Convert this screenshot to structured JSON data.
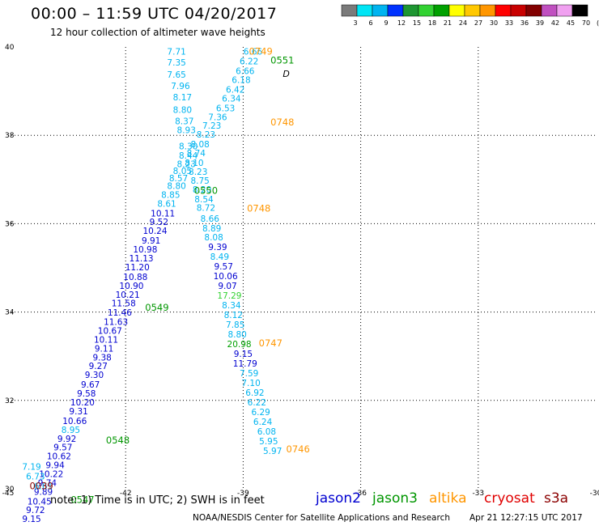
{
  "header": {
    "title": "00:00 – 11:59 UTC 04/20/2017",
    "subtitle": "12 hour collection of altimeter wave heights"
  },
  "colorbar": {
    "labels": [
      "3",
      "6",
      "9",
      "12",
      "15",
      "18",
      "21",
      "24",
      "27",
      "30",
      "33",
      "36",
      "39",
      "42",
      "45",
      "70",
      "(ft)"
    ],
    "colors": [
      "#7a7a7a",
      "#00e5f5",
      "#00b4f0",
      "#0032ff",
      "#1e9632",
      "#32d232",
      "#00a000",
      "#ffff00",
      "#ffc800",
      "#ff9600",
      "#ff0000",
      "#c80000",
      "#820000",
      "#c050c0",
      "#f0a0f0",
      "#000000"
    ]
  },
  "footer": {
    "note": "note: 1) Time is in UTC; 2) SWH is in feet",
    "credit": "NOAA/NESDIS Center for Satellite Applications and Research",
    "timestamp": "Apr 21 12:27:15 UTC 2017"
  },
  "satellites": [
    {
      "name": "jason2",
      "color": "#0000d0"
    },
    {
      "name": "jason3",
      "color": "#009600"
    },
    {
      "name": "altika",
      "color": "#ff9600"
    },
    {
      "name": "cryosat",
      "color": "#e00000"
    },
    {
      "name": "s3a",
      "color": "#8b0000"
    }
  ],
  "chart_data": {
    "type": "scatter",
    "title": "00:00 – 11:59 UTC 04/20/2017",
    "subtitle": "12 hour collection of altimeter wave heights",
    "xlim": [
      -45,
      -30
    ],
    "ylim": [
      30,
      40
    ],
    "xticks": [
      "-45",
      "-42",
      "-39",
      "-36",
      "-33",
      "-30"
    ],
    "yticks": [
      "30",
      "32",
      "34",
      "36",
      "38",
      "40"
    ],
    "grid": true,
    "unit": "ft",
    "points": [
      {
        "x": -40.7,
        "y": 39.9,
        "v": "7.71",
        "c": "#00b4f0"
      },
      {
        "x": -40.7,
        "y": 39.65,
        "v": "7.35",
        "c": "#00b4f0"
      },
      {
        "x": -40.7,
        "y": 39.38,
        "v": "7.65",
        "c": "#00b4f0"
      },
      {
        "x": -40.6,
        "y": 39.12,
        "v": "7.96",
        "c": "#00b4f0"
      },
      {
        "x": -40.55,
        "y": 38.86,
        "v": "8.17",
        "c": "#00b4f0"
      },
      {
        "x": -40.55,
        "y": 38.58,
        "v": "8.80",
        "c": "#00b4f0"
      },
      {
        "x": -40.5,
        "y": 38.32,
        "v": "8.37",
        "c": "#00b4f0"
      },
      {
        "x": -40.45,
        "y": 38.12,
        "v": "8.93",
        "c": "#00b4f0"
      },
      {
        "x": -40.4,
        "y": 37.76,
        "v": "8.30",
        "c": "#00b4f0"
      },
      {
        "x": -40.4,
        "y": 37.55,
        "v": "8.44",
        "c": "#00b4f0"
      },
      {
        "x": -40.45,
        "y": 37.35,
        "v": "8.23",
        "c": "#00b4f0"
      },
      {
        "x": -40.55,
        "y": 37.2,
        "v": "8.05",
        "c": "#00b4f0"
      },
      {
        "x": -40.65,
        "y": 37.03,
        "v": "8.57",
        "c": "#00b4f0"
      },
      {
        "x": -40.7,
        "y": 36.86,
        "v": "8.80",
        "c": "#00b4f0"
      },
      {
        "x": -40.85,
        "y": 36.66,
        "v": "8.85",
        "c": "#00b4f0"
      },
      {
        "x": -40.95,
        "y": 36.46,
        "v": "8.61",
        "c": "#00b4f0"
      },
      {
        "x": -41.05,
        "y": 36.24,
        "v": "10.11",
        "c": "#0000d0"
      },
      {
        "x": -41.15,
        "y": 36.04,
        "v": "9.52",
        "c": "#0000d0"
      },
      {
        "x": -41.25,
        "y": 35.84,
        "v": "10.24",
        "c": "#0000d0"
      },
      {
        "x": -41.35,
        "y": 35.62,
        "v": "9.91",
        "c": "#0000d0"
      },
      {
        "x": -41.5,
        "y": 35.42,
        "v": "10.98",
        "c": "#0000d0"
      },
      {
        "x": -41.6,
        "y": 35.22,
        "v": "11.13",
        "c": "#0000d0"
      },
      {
        "x": -41.7,
        "y": 35.02,
        "v": "11.20",
        "c": "#0000d0"
      },
      {
        "x": -41.75,
        "y": 34.8,
        "v": "10.88",
        "c": "#0000d0"
      },
      {
        "x": -41.85,
        "y": 34.6,
        "v": "10.90",
        "c": "#0000d0"
      },
      {
        "x": -41.95,
        "y": 34.4,
        "v": "10.21",
        "c": "#0000d0"
      },
      {
        "x": -42.05,
        "y": 34.2,
        "v": "11.58",
        "c": "#0000d0"
      },
      {
        "x": -42.15,
        "y": 33.99,
        "v": "11.46",
        "c": "#0000d0"
      },
      {
        "x": -42.25,
        "y": 33.78,
        "v": "11.63",
        "c": "#0000d0"
      },
      {
        "x": -42.4,
        "y": 33.58,
        "v": "10.67",
        "c": "#0000d0"
      },
      {
        "x": -42.5,
        "y": 33.38,
        "v": "10.11",
        "c": "#0000d0"
      },
      {
        "x": -42.55,
        "y": 33.18,
        "v": "9.11",
        "c": "#0000d0"
      },
      {
        "x": -42.6,
        "y": 32.98,
        "v": "9.38",
        "c": "#0000d0"
      },
      {
        "x": -42.7,
        "y": 32.78,
        "v": "9.27",
        "c": "#0000d0"
      },
      {
        "x": -42.8,
        "y": 32.58,
        "v": "9.30",
        "c": "#0000d0"
      },
      {
        "x": -42.9,
        "y": 32.36,
        "v": "9.67",
        "c": "#0000d0"
      },
      {
        "x": -43.0,
        "y": 32.16,
        "v": "9.58",
        "c": "#0000d0"
      },
      {
        "x": -43.1,
        "y": 31.96,
        "v": "10.20",
        "c": "#0000d0"
      },
      {
        "x": -43.2,
        "y": 31.76,
        "v": "9.31",
        "c": "#0000d0"
      },
      {
        "x": -43.3,
        "y": 31.54,
        "v": "10.66",
        "c": "#0000d0"
      },
      {
        "x": -43.4,
        "y": 31.34,
        "v": "8.95",
        "c": "#00b4f0"
      },
      {
        "x": -43.5,
        "y": 31.14,
        "v": "9.92",
        "c": "#0000d0"
      },
      {
        "x": -43.6,
        "y": 30.94,
        "v": "9.57",
        "c": "#0000d0"
      },
      {
        "x": -43.7,
        "y": 30.74,
        "v": "10.62",
        "c": "#0000d0"
      },
      {
        "x": -43.8,
        "y": 30.54,
        "v": "9.94",
        "c": "#0000d0"
      },
      {
        "x": -43.9,
        "y": 30.34,
        "v": "10.22",
        "c": "#0000d0"
      },
      {
        "x": -44.0,
        "y": 30.14,
        "v": "9.74",
        "c": "#0000d0"
      },
      {
        "x": -44.1,
        "y": 29.94,
        "v": "9.89",
        "c": "#0000d0"
      },
      {
        "x": -44.2,
        "y": 29.72,
        "v": "10.45",
        "c": "#0000d0"
      },
      {
        "x": -44.3,
        "y": 29.52,
        "v": "9.72",
        "c": "#0000d0"
      },
      {
        "x": -44.4,
        "y": 29.32,
        "v": "9.15",
        "c": "#0000d0"
      },
      {
        "x": -38.75,
        "y": 39.9,
        "v": "6.66",
        "c": "#00b4f0"
      },
      {
        "x": -38.85,
        "y": 39.68,
        "v": "6.22",
        "c": "#00b4f0"
      },
      {
        "x": -38.95,
        "y": 39.46,
        "v": "6.66",
        "c": "#00b4f0"
      },
      {
        "x": -39.05,
        "y": 39.26,
        "v": "6.18",
        "c": "#00b4f0"
      },
      {
        "x": -39.2,
        "y": 39.04,
        "v": "6.42",
        "c": "#00b4f0"
      },
      {
        "x": -39.3,
        "y": 38.84,
        "v": "6.34",
        "c": "#00b4f0"
      },
      {
        "x": -39.45,
        "y": 38.62,
        "v": "6.53",
        "c": "#00b4f0"
      },
      {
        "x": -39.65,
        "y": 38.42,
        "v": "7.36",
        "c": "#00b4f0"
      },
      {
        "x": -39.8,
        "y": 38.22,
        "v": "7.23",
        "c": "#00b4f0"
      },
      {
        "x": -39.95,
        "y": 38.02,
        "v": "8.23",
        "c": "#00b4f0"
      },
      {
        "x": -40.1,
        "y": 37.8,
        "v": "8.08",
        "c": "#00b4f0"
      },
      {
        "x": -40.2,
        "y": 37.6,
        "v": "8.74",
        "c": "#00b4f0"
      },
      {
        "x": -40.25,
        "y": 37.38,
        "v": "8.10",
        "c": "#00b4f0"
      },
      {
        "x": -40.15,
        "y": 37.18,
        "v": "8.23",
        "c": "#00b4f0"
      },
      {
        "x": -40.1,
        "y": 36.98,
        "v": "8.75",
        "c": "#00b4f0"
      },
      {
        "x": -40.05,
        "y": 36.78,
        "v": "8.20",
        "c": "#00b4f0"
      },
      {
        "x": -40.0,
        "y": 36.56,
        "v": "8.54",
        "c": "#00b4f0"
      },
      {
        "x": -39.95,
        "y": 36.36,
        "v": "8.72",
        "c": "#00b4f0"
      },
      {
        "x": -39.85,
        "y": 36.12,
        "v": "8.66",
        "c": "#00b4f0"
      },
      {
        "x": -39.8,
        "y": 35.9,
        "v": "8.89",
        "c": "#00b4f0"
      },
      {
        "x": -39.75,
        "y": 35.7,
        "v": "8.08",
        "c": "#00b4f0"
      },
      {
        "x": -39.65,
        "y": 35.48,
        "v": "9.39",
        "c": "#0000d0"
      },
      {
        "x": -39.6,
        "y": 35.26,
        "v": "8.49",
        "c": "#00b4f0"
      },
      {
        "x": -39.5,
        "y": 35.04,
        "v": "9.57",
        "c": "#0000d0"
      },
      {
        "x": -39.45,
        "y": 34.82,
        "v": "10.06",
        "c": "#0000d0"
      },
      {
        "x": -39.4,
        "y": 34.6,
        "v": "9.07",
        "c": "#0000d0"
      },
      {
        "x": -39.35,
        "y": 34.38,
        "v": "17.29",
        "c": "#32d232"
      },
      {
        "x": -39.3,
        "y": 34.16,
        "v": "8.34",
        "c": "#00b4f0"
      },
      {
        "x": -39.25,
        "y": 33.94,
        "v": "8.12",
        "c": "#00b4f0"
      },
      {
        "x": -39.2,
        "y": 33.72,
        "v": "7.85",
        "c": "#00b4f0"
      },
      {
        "x": -39.15,
        "y": 33.5,
        "v": "8.80",
        "c": "#00b4f0"
      },
      {
        "x": -39.1,
        "y": 33.28,
        "v": "20.98",
        "c": "#00a000"
      },
      {
        "x": -39.0,
        "y": 33.06,
        "v": "9.15",
        "c": "#0000d0"
      },
      {
        "x": -38.95,
        "y": 32.84,
        "v": "11.79",
        "c": "#0000d0"
      },
      {
        "x": -38.85,
        "y": 32.62,
        "v": "7.59",
        "c": "#00b4f0"
      },
      {
        "x": -38.8,
        "y": 32.4,
        "v": "7.10",
        "c": "#00b4f0"
      },
      {
        "x": -38.7,
        "y": 32.18,
        "v": "6.92",
        "c": "#00b4f0"
      },
      {
        "x": -38.65,
        "y": 31.96,
        "v": "6.22",
        "c": "#00b4f0"
      },
      {
        "x": -38.55,
        "y": 31.74,
        "v": "6.29",
        "c": "#00b4f0"
      },
      {
        "x": -38.5,
        "y": 31.52,
        "v": "6.24",
        "c": "#00b4f0"
      },
      {
        "x": -38.4,
        "y": 31.3,
        "v": "6.08",
        "c": "#00b4f0"
      },
      {
        "x": -38.35,
        "y": 31.08,
        "v": "5.95",
        "c": "#00b4f0"
      },
      {
        "x": -38.25,
        "y": 30.86,
        "v": "5.97",
        "c": "#00b4f0"
      },
      {
        "x": -44.4,
        "y": 30.5,
        "v": "7.19",
        "c": "#00b4f0"
      },
      {
        "x": -44.3,
        "y": 30.28,
        "v": "6.73",
        "c": "#00b4f0"
      },
      {
        "x": -44.1,
        "y": 30.06,
        "v": "6.61",
        "c": "#00b4f0"
      }
    ],
    "time_labels": [
      {
        "x": -38.55,
        "y": 39.9,
        "t": "0749",
        "c": "#ff9600"
      },
      {
        "x": -38.0,
        "y": 39.7,
        "t": "0551",
        "c": "#009600"
      },
      {
        "x": -38.0,
        "y": 38.3,
        "t": "0748",
        "c": "#ff9600"
      },
      {
        "x": -39.95,
        "y": 36.75,
        "t": "0550",
        "c": "#009600"
      },
      {
        "x": -38.6,
        "y": 36.35,
        "t": "0748",
        "c": "#ff9600"
      },
      {
        "x": -41.2,
        "y": 34.1,
        "t": "0549",
        "c": "#009600"
      },
      {
        "x": -38.3,
        "y": 33.3,
        "t": "0747",
        "c": "#ff9600"
      },
      {
        "x": -42.2,
        "y": 31.1,
        "t": "0548",
        "c": "#009600"
      },
      {
        "x": -43.1,
        "y": 29.75,
        "t": "0547",
        "c": "#009600"
      },
      {
        "x": -37.6,
        "y": 30.9,
        "t": "0746",
        "c": "#ff9600"
      },
      {
        "x": -44.15,
        "y": 30.06,
        "t": "0039",
        "c": "#8b0000"
      }
    ]
  }
}
